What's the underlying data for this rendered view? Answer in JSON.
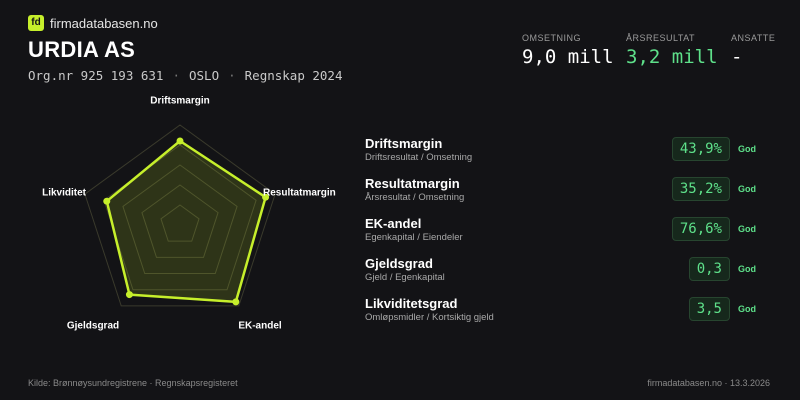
{
  "brand": {
    "logo": "fd",
    "name": "firmadatabasen.no"
  },
  "company": {
    "name": "URDIA AS",
    "details": [
      "Org.nr 925 193 631",
      "OSLO",
      "Regnskap 2024"
    ]
  },
  "metrics": [
    {
      "label": "OMSETNING",
      "value": "9,0 mill"
    },
    {
      "label": "ÅRSRESULTAT",
      "value": "3,2 mill"
    },
    {
      "label": "ANSATTE",
      "value": "-"
    }
  ],
  "chart_data": {
    "type": "radar",
    "categories": [
      "Driftsmargin",
      "Resultatmargin",
      "EK-andel",
      "Gjeldsgrad",
      "Likviditet"
    ],
    "values": [
      84,
      90,
      95,
      86,
      77
    ],
    "color": "#c6ef2b",
    "rlim": [
      0,
      100
    ],
    "rticks": [
      20,
      40,
      60,
      80,
      100
    ]
  },
  "key_figures": [
    {
      "name": "Driftsmargin",
      "formula": "Driftsresultat / Omsetning",
      "value": "43,9%",
      "rating": "God"
    },
    {
      "name": "Resultatmargin",
      "formula": "Årsresultat / Omsetning",
      "value": "35,2%",
      "rating": "God"
    },
    {
      "name": "EK-andel",
      "formula": "Egenkapital / Eiendeler",
      "value": "76,6%",
      "rating": "God"
    },
    {
      "name": "Gjeldsgrad",
      "formula": "Gjeld / Egenkapital",
      "value": "0,3",
      "rating": "God"
    },
    {
      "name": "Likviditetsgrad",
      "formula": "Omløpsmidler / Kortsiktig gjeld",
      "value": "3,5",
      "rating": "God"
    }
  ],
  "footer": {
    "source": "Kilde: Brønnøysundregistrene · Regnskapsregisteret",
    "site": "firmadatabasen.no · 13.3.2026"
  }
}
